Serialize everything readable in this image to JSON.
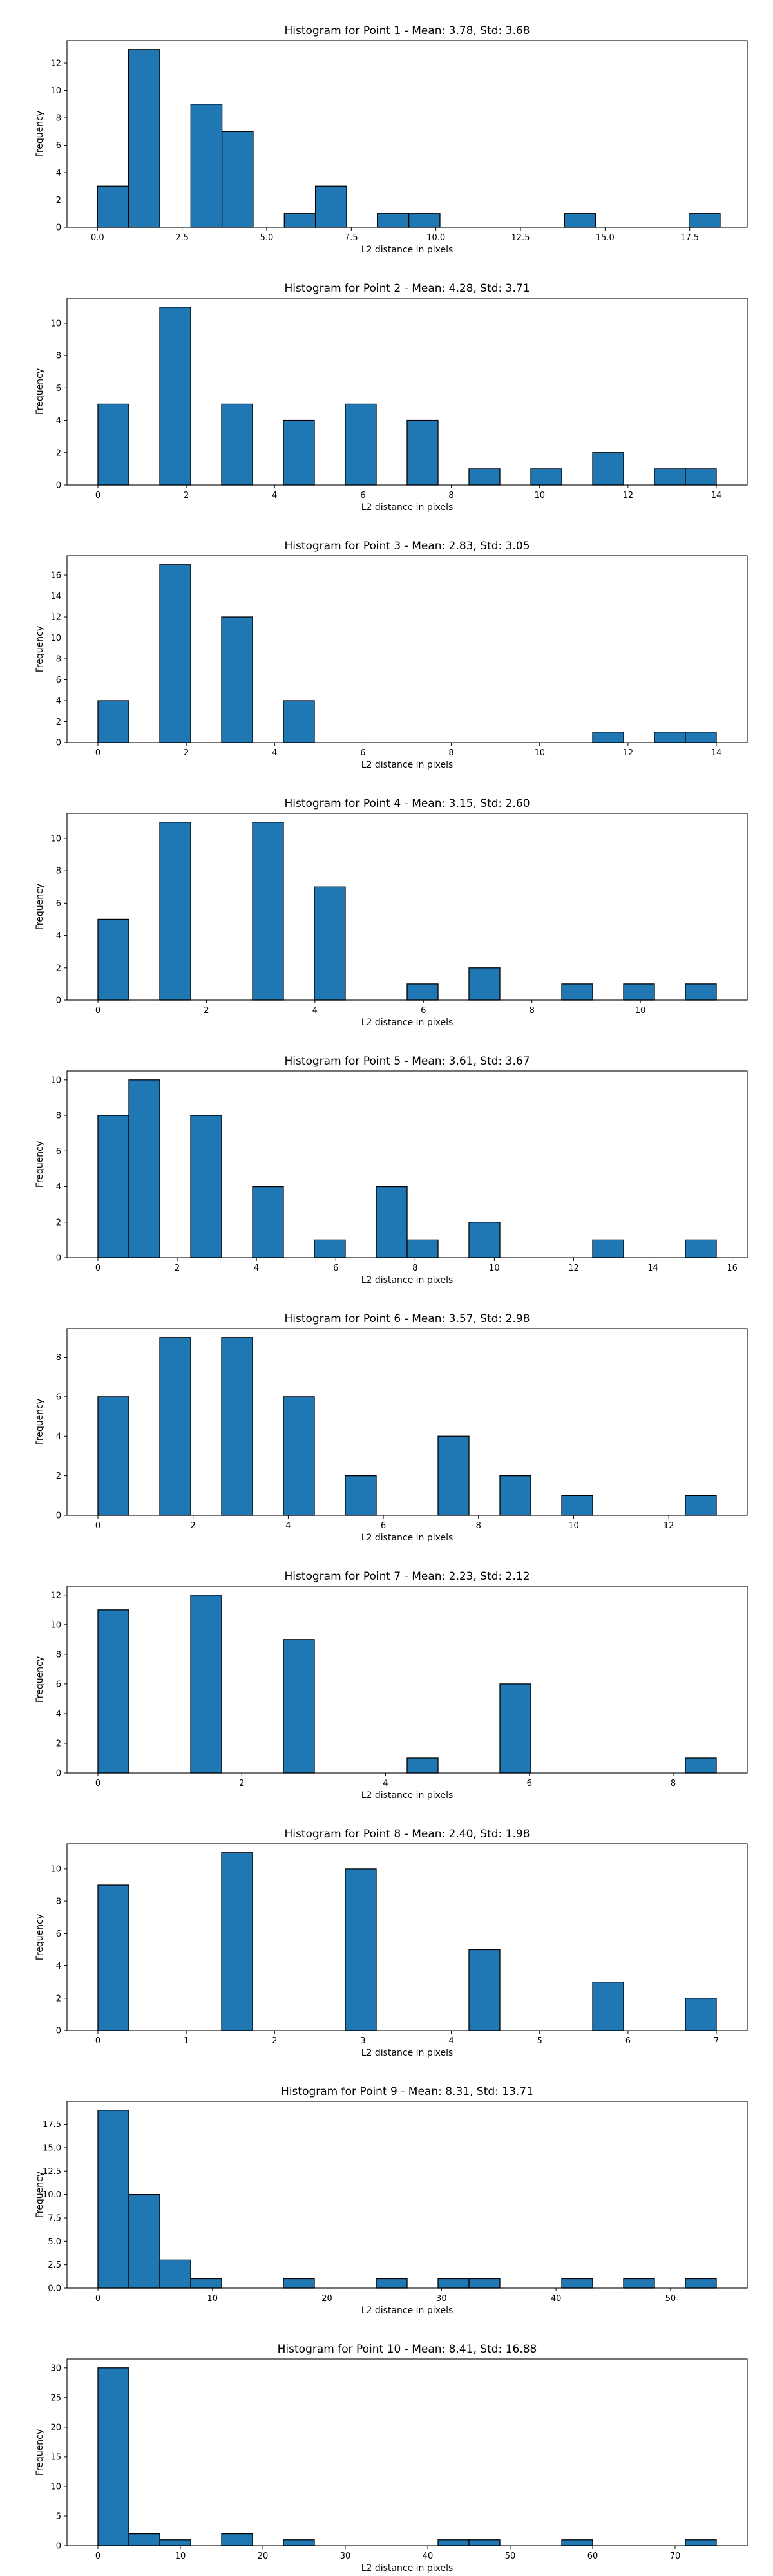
{
  "figure": {
    "background": "#ffffff"
  },
  "chart_data": [
    {
      "type": "bar",
      "title": "Histogram for Point 1 - Mean: 3.78, Std: 3.68",
      "xlabel": "L2 distance in pixels",
      "ylabel": "Frequency",
      "bar_color": "#1f77b4",
      "edge_color": "#000000",
      "grid": false,
      "xlim": [
        -0.9,
        19.2
      ],
      "ylim": [
        0,
        13.65
      ],
      "xticks": [
        0,
        2.5,
        5,
        7.5,
        10,
        12.5,
        15,
        17.5
      ],
      "xtick_labels": [
        "0.0",
        "2.5",
        "5.0",
        "7.5",
        "10.0",
        "12.5",
        "15.0",
        "17.5"
      ],
      "yticks": [
        0,
        2,
        4,
        6,
        8,
        10,
        12
      ],
      "ytick_labels": [
        "0",
        "2",
        "4",
        "6",
        "8",
        "10",
        "12"
      ],
      "bin_edges": [
        0,
        0.92,
        1.84,
        2.76,
        3.68,
        4.6,
        5.52,
        6.44,
        7.36,
        8.28,
        9.2,
        10.12,
        11.04,
        11.96,
        12.88,
        13.8,
        14.72,
        15.64,
        16.56,
        17.48,
        18.4
      ],
      "counts": [
        3,
        13,
        0,
        9,
        7,
        0,
        1,
        3,
        0,
        1,
        1,
        0,
        0,
        0,
        0,
        1,
        0,
        0,
        0,
        1
      ]
    },
    {
      "type": "bar",
      "title": "Histogram for Point 2 - Mean: 4.28, Std: 3.71",
      "xlabel": "L2 distance in pixels",
      "ylabel": "Frequency",
      "bar_color": "#1f77b4",
      "edge_color": "#000000",
      "grid": false,
      "xlim": [
        -0.7,
        14.7
      ],
      "ylim": [
        0,
        11.55
      ],
      "xticks": [
        0,
        2,
        4,
        6,
        8,
        10,
        12,
        14
      ],
      "xtick_labels": [
        "0",
        "2",
        "4",
        "6",
        "8",
        "10",
        "12",
        "14"
      ],
      "yticks": [
        0,
        2,
        4,
        6,
        8,
        10
      ],
      "ytick_labels": [
        "0",
        "2",
        "4",
        "6",
        "8",
        "10"
      ],
      "bin_edges": [
        0,
        0.7,
        1.4,
        2.1,
        2.8,
        3.5,
        4.2,
        4.9,
        5.6,
        6.3,
        7.0,
        7.7,
        8.4,
        9.1,
        9.8,
        10.5,
        11.2,
        11.9,
        12.6,
        13.3,
        14.0
      ],
      "counts": [
        5,
        0,
        11,
        0,
        5,
        0,
        4,
        0,
        5,
        0,
        4,
        0,
        1,
        0,
        1,
        0,
        2,
        0,
        1,
        1
      ]
    },
    {
      "type": "bar",
      "title": "Histogram for Point 3 - Mean: 2.83, Std: 3.05",
      "xlabel": "L2 distance in pixels",
      "ylabel": "Frequency",
      "bar_color": "#1f77b4",
      "edge_color": "#000000",
      "grid": false,
      "xlim": [
        -0.7,
        14.7
      ],
      "ylim": [
        0,
        17.85
      ],
      "xticks": [
        0,
        2,
        4,
        6,
        8,
        10,
        12,
        14
      ],
      "xtick_labels": [
        "0",
        "2",
        "4",
        "6",
        "8",
        "10",
        "12",
        "14"
      ],
      "yticks": [
        0,
        2,
        4,
        6,
        8,
        10,
        12,
        14,
        16
      ],
      "ytick_labels": [
        "0",
        "2",
        "4",
        "6",
        "8",
        "10",
        "12",
        "14",
        "16"
      ],
      "bin_edges": [
        0,
        0.7,
        1.4,
        2.1,
        2.8,
        3.5,
        4.2,
        4.9,
        5.6,
        6.3,
        7.0,
        7.7,
        8.4,
        9.1,
        9.8,
        10.5,
        11.2,
        11.9,
        12.6,
        13.3,
        14.0
      ],
      "counts": [
        4,
        0,
        17,
        0,
        12,
        0,
        4,
        0,
        0,
        0,
        0,
        0,
        0,
        0,
        0,
        0,
        1,
        0,
        1,
        1
      ]
    },
    {
      "type": "bar",
      "title": "Histogram for Point 4 - Mean: 3.15, Std: 2.60",
      "xlabel": "L2 distance in pixels",
      "ylabel": "Frequency",
      "bar_color": "#1f77b4",
      "edge_color": "#000000",
      "grid": false,
      "xlim": [
        -0.57,
        11.97
      ],
      "ylim": [
        0,
        11.55
      ],
      "xticks": [
        0,
        2,
        4,
        6,
        8,
        10
      ],
      "xtick_labels": [
        "0",
        "2",
        "4",
        "6",
        "8",
        "10"
      ],
      "yticks": [
        0,
        2,
        4,
        6,
        8,
        10
      ],
      "ytick_labels": [
        "0",
        "2",
        "4",
        "6",
        "8",
        "10"
      ],
      "bin_edges": [
        0,
        0.57,
        1.14,
        1.71,
        2.28,
        2.85,
        3.42,
        3.99,
        4.56,
        5.13,
        5.7,
        6.27,
        6.84,
        7.41,
        7.98,
        8.55,
        9.12,
        9.69,
        10.26,
        10.83,
        11.4
      ],
      "counts": [
        5,
        0,
        11,
        0,
        0,
        11,
        0,
        7,
        0,
        0,
        1,
        0,
        2,
        0,
        0,
        1,
        0,
        1,
        0,
        1
      ]
    },
    {
      "type": "bar",
      "title": "Histogram for Point 5 - Mean: 3.61, Std: 3.67",
      "xlabel": "L2 distance in pixels",
      "ylabel": "Frequency",
      "bar_color": "#1f77b4",
      "edge_color": "#000000",
      "grid": false,
      "xlim": [
        -0.78,
        16.38
      ],
      "ylim": [
        0,
        10.5
      ],
      "xticks": [
        0,
        2,
        4,
        6,
        8,
        10,
        12,
        14,
        16
      ],
      "xtick_labels": [
        "0",
        "2",
        "4",
        "6",
        "8",
        "10",
        "12",
        "14",
        "16"
      ],
      "yticks": [
        0,
        2,
        4,
        6,
        8,
        10
      ],
      "ytick_labels": [
        "0",
        "2",
        "4",
        "6",
        "8",
        "10"
      ],
      "bin_edges": [
        0,
        0.78,
        1.56,
        2.34,
        3.12,
        3.9,
        4.68,
        5.46,
        6.24,
        7.02,
        7.8,
        8.58,
        9.36,
        10.14,
        10.92,
        11.7,
        12.48,
        13.26,
        14.04,
        14.82,
        15.6
      ],
      "counts": [
        8,
        10,
        0,
        8,
        0,
        4,
        0,
        1,
        0,
        4,
        1,
        0,
        2,
        0,
        0,
        0,
        1,
        0,
        0,
        1
      ]
    },
    {
      "type": "bar",
      "title": "Histogram for Point 6 - Mean: 3.57, Std: 2.98",
      "xlabel": "L2 distance in pixels",
      "ylabel": "Frequency",
      "bar_color": "#1f77b4",
      "edge_color": "#000000",
      "grid": false,
      "xlim": [
        -0.65,
        13.65
      ],
      "ylim": [
        0,
        9.45
      ],
      "xticks": [
        0,
        2,
        4,
        6,
        8,
        10,
        12
      ],
      "xtick_labels": [
        "0",
        "2",
        "4",
        "6",
        "8",
        "10",
        "12"
      ],
      "yticks": [
        0,
        2,
        4,
        6,
        8
      ],
      "ytick_labels": [
        "0",
        "2",
        "4",
        "6",
        "8"
      ],
      "bin_edges": [
        0,
        0.65,
        1.3,
        1.95,
        2.6,
        3.25,
        3.9,
        4.55,
        5.2,
        5.85,
        6.5,
        7.15,
        7.8,
        8.45,
        9.1,
        9.75,
        10.4,
        11.05,
        11.7,
        12.35,
        13.0
      ],
      "counts": [
        6,
        0,
        9,
        0,
        9,
        0,
        6,
        0,
        2,
        0,
        0,
        4,
        0,
        2,
        0,
        1,
        0,
        0,
        0,
        1
      ]
    },
    {
      "type": "bar",
      "title": "Histogram for Point 7 - Mean: 2.23, Std: 2.12",
      "xlabel": "L2 distance in pixels",
      "ylabel": "Frequency",
      "bar_color": "#1f77b4",
      "edge_color": "#000000",
      "grid": false,
      "xlim": [
        -0.43,
        9.03
      ],
      "ylim": [
        0,
        12.6
      ],
      "xticks": [
        0,
        2,
        4,
        6,
        8
      ],
      "xtick_labels": [
        "0",
        "2",
        "4",
        "6",
        "8"
      ],
      "yticks": [
        0,
        2,
        4,
        6,
        8,
        10,
        12
      ],
      "ytick_labels": [
        "0",
        "2",
        "4",
        "6",
        "8",
        "10",
        "12"
      ],
      "bin_edges": [
        0,
        0.43,
        0.86,
        1.29,
        1.72,
        2.15,
        2.58,
        3.01,
        3.44,
        3.87,
        4.3,
        4.73,
        5.16,
        5.59,
        6.02,
        6.45,
        6.88,
        7.31,
        7.74,
        8.17,
        8.6
      ],
      "counts": [
        11,
        0,
        0,
        12,
        0,
        0,
        9,
        0,
        0,
        0,
        1,
        0,
        0,
        6,
        0,
        0,
        0,
        0,
        0,
        1
      ]
    },
    {
      "type": "bar",
      "title": "Histogram for Point 8 - Mean: 2.40, Std: 1.98",
      "xlabel": "L2 distance in pixels",
      "ylabel": "Frequency",
      "bar_color": "#1f77b4",
      "edge_color": "#000000",
      "grid": false,
      "xlim": [
        -0.35,
        7.35
      ],
      "ylim": [
        0,
        11.55
      ],
      "xticks": [
        0,
        1,
        2,
        3,
        4,
        5,
        6,
        7
      ],
      "xtick_labels": [
        "0",
        "1",
        "2",
        "3",
        "4",
        "5",
        "6",
        "7"
      ],
      "yticks": [
        0,
        2,
        4,
        6,
        8,
        10
      ],
      "ytick_labels": [
        "0",
        "2",
        "4",
        "6",
        "8",
        "10"
      ],
      "bin_edges": [
        0,
        0.35,
        0.7,
        1.05,
        1.4,
        1.75,
        2.1,
        2.45,
        2.8,
        3.15,
        3.5,
        3.85,
        4.2,
        4.55,
        4.9,
        5.25,
        5.6,
        5.95,
        6.3,
        6.65,
        7.0
      ],
      "counts": [
        9,
        0,
        0,
        0,
        11,
        0,
        0,
        0,
        10,
        0,
        0,
        0,
        5,
        0,
        0,
        0,
        3,
        0,
        0,
        2
      ]
    },
    {
      "type": "bar",
      "title": "Histogram for Point 9 - Mean: 8.31, Std: 13.71",
      "xlabel": "L2 distance in pixels",
      "ylabel": "Frequency",
      "bar_color": "#1f77b4",
      "edge_color": "#000000",
      "grid": false,
      "xlim": [
        -2.7,
        56.7
      ],
      "ylim": [
        0,
        19.95
      ],
      "xticks": [
        0,
        10,
        20,
        30,
        40,
        50
      ],
      "xtick_labels": [
        "0",
        "10",
        "20",
        "30",
        "40",
        "50"
      ],
      "yticks": [
        0,
        2.5,
        5,
        7.5,
        10,
        12.5,
        15,
        17.5
      ],
      "ytick_labels": [
        "0.0",
        "2.5",
        "5.0",
        "7.5",
        "10.0",
        "12.5",
        "15.0",
        "17.5"
      ],
      "bin_edges": [
        0,
        2.7,
        5.4,
        8.1,
        10.8,
        13.5,
        16.2,
        18.9,
        21.6,
        24.3,
        27.0,
        29.7,
        32.4,
        35.1,
        37.8,
        40.5,
        43.2,
        45.9,
        48.6,
        51.3,
        54.0
      ],
      "counts": [
        19,
        10,
        3,
        1,
        0,
        0,
        1,
        0,
        0,
        1,
        0,
        1,
        1,
        0,
        0,
        1,
        0,
        1,
        0,
        1
      ]
    },
    {
      "type": "bar",
      "title": "Histogram for Point 10 - Mean: 8.41, Std: 16.88",
      "xlabel": "L2 distance in pixels",
      "ylabel": "Frequency",
      "bar_color": "#1f77b4",
      "edge_color": "#000000",
      "grid": false,
      "xlim": [
        -3.75,
        78.75
      ],
      "ylim": [
        0,
        31.5
      ],
      "xticks": [
        0,
        10,
        20,
        30,
        40,
        50,
        60,
        70
      ],
      "xtick_labels": [
        "0",
        "10",
        "20",
        "30",
        "40",
        "50",
        "60",
        "70"
      ],
      "yticks": [
        0,
        5,
        10,
        15,
        20,
        25,
        30
      ],
      "ytick_labels": [
        "0",
        "5",
        "10",
        "15",
        "20",
        "25",
        "30"
      ],
      "bin_edges": [
        0,
        3.75,
        7.5,
        11.25,
        15.0,
        18.75,
        22.5,
        26.25,
        30.0,
        33.75,
        37.5,
        41.25,
        45.0,
        48.75,
        52.5,
        56.25,
        60.0,
        63.75,
        67.5,
        71.25,
        75.0
      ],
      "counts": [
        30,
        2,
        1,
        0,
        2,
        0,
        1,
        0,
        0,
        0,
        0,
        1,
        1,
        0,
        0,
        1,
        0,
        0,
        0,
        1
      ]
    }
  ]
}
